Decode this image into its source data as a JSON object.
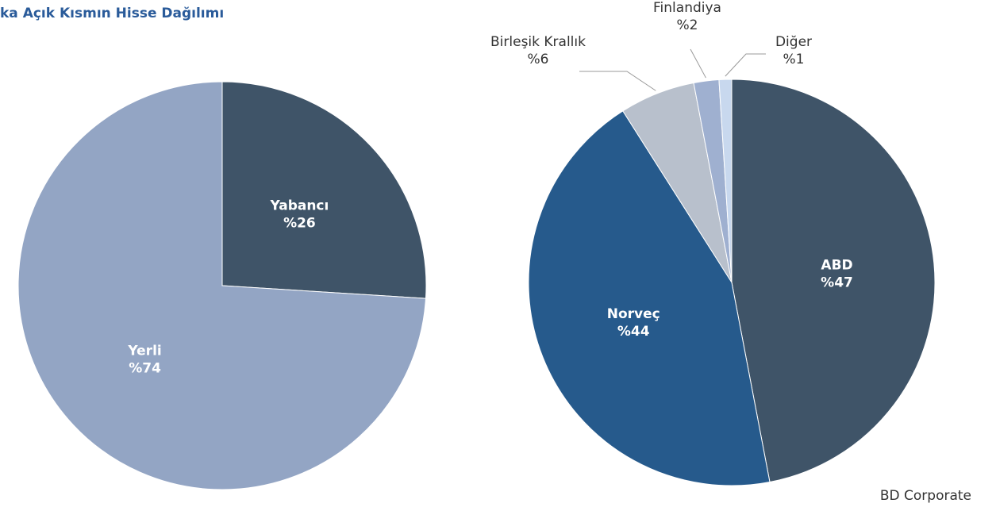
{
  "title": "ka Açık Kısmın Hisse Dağılımı",
  "source": "BD Corporate",
  "chart_data": [
    {
      "type": "pie",
      "categories": [
        "Yabancı",
        "Yerli"
      ],
      "values": [
        26,
        74
      ],
      "value_labels": [
        "%26",
        "%74"
      ],
      "colors": [
        "#3f5468",
        "#93a5c4"
      ]
    },
    {
      "type": "pie",
      "categories": [
        "ABD",
        "Norveç",
        "Birleşik Krallık",
        "Finlandiya",
        "Diğer"
      ],
      "values": [
        47,
        44,
        6,
        2,
        1
      ],
      "value_labels": [
        "%47",
        "%44",
        "%6",
        "%2",
        "%1"
      ],
      "colors": [
        "#3f5468",
        "#265a8c",
        "#b8c0cc",
        "#9fb0d0",
        "#c8d8ee"
      ]
    }
  ]
}
